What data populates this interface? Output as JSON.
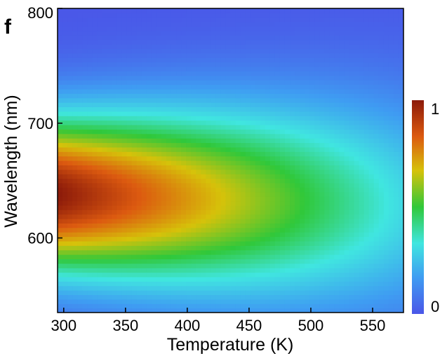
{
  "panel_label": "f",
  "chart_data": {
    "type": "heatmap",
    "title": "",
    "xlabel": "Temperature (K)",
    "ylabel": "Wavelength (nm)",
    "xlim": [
      295,
      575
    ],
    "ylim": [
      535,
      800
    ],
    "x_ticks": [
      300,
      350,
      400,
      450,
      500,
      550
    ],
    "y_ticks": [
      600,
      700,
      800
    ],
    "colorbar": {
      "min": 0,
      "max": 1,
      "tick_labels": [
        "0",
        "1"
      ],
      "colormap": [
        "#4a56e8",
        "#3f9cf2",
        "#40e6e0",
        "#30c83a",
        "#d6c20a",
        "#dc5a10",
        "#8c1a0a"
      ]
    },
    "peak": {
      "wavelength_start_nm": 638,
      "wavelength_slope_nm_per_K": -0.03,
      "width_nm": 48,
      "intensity_at_300K": 1.0,
      "intensity_at_575K": 0.3
    },
    "grid": false,
    "legend": "colorbar-right"
  }
}
